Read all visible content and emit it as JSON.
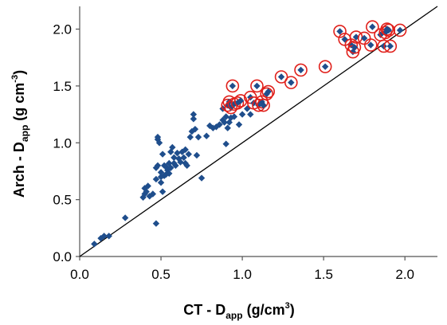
{
  "chart_data": {
    "type": "scatter",
    "xlabel": {
      "main": "CT - D",
      "sub": "app",
      "tail": " (g/cm",
      "sup": "3",
      "end": ")"
    },
    "ylabel": {
      "main": "Arch - D",
      "sub": "app",
      "tail": " (g cm",
      "sup": "-3",
      "end": ")"
    },
    "xlim": [
      0.0,
      2.2
    ],
    "ylim": [
      0.0,
      2.2
    ],
    "x_ticks": [
      "0.0",
      "0.5",
      "1.0",
      "1.5",
      "2.0"
    ],
    "y_ticks": [
      "0.0",
      "0.5",
      "1.0",
      "1.5",
      "2.0"
    ],
    "grid": false,
    "reference_line": {
      "name": "1:1 line",
      "from": [
        0.0,
        0.0
      ],
      "to": [
        2.2,
        2.2
      ],
      "color": "#000000"
    },
    "marker_color": "#1f4e8c",
    "highlight_color": "#e0201b",
    "series": [
      {
        "points": [
          [
            0.09,
            0.11
          ],
          [
            0.13,
            0.16
          ],
          [
            0.15,
            0.18
          ],
          [
            0.18,
            0.18
          ],
          [
            0.28,
            0.34
          ],
          [
            0.39,
            0.52
          ],
          [
            0.4,
            0.6
          ],
          [
            0.4,
            0.55
          ],
          [
            0.41,
            0.57
          ],
          [
            0.42,
            0.62
          ],
          [
            0.43,
            0.53
          ],
          [
            0.45,
            0.55
          ],
          [
            0.47,
            0.29
          ],
          [
            0.47,
            0.68
          ],
          [
            0.47,
            0.78
          ],
          [
            0.48,
            0.8
          ],
          [
            0.48,
            1.03
          ],
          [
            0.48,
            1.05
          ],
          [
            0.49,
            1.0
          ],
          [
            0.5,
            0.74
          ],
          [
            0.5,
            0.7
          ],
          [
            0.5,
            0.65
          ],
          [
            0.51,
            0.9
          ],
          [
            0.51,
            0.57
          ],
          [
            0.52,
            0.71
          ],
          [
            0.52,
            0.8
          ],
          [
            0.53,
            0.72
          ],
          [
            0.53,
            0.79
          ],
          [
            0.54,
            0.76
          ],
          [
            0.55,
            0.82
          ],
          [
            0.55,
            0.73
          ],
          [
            0.56,
            0.92
          ],
          [
            0.56,
            0.78
          ],
          [
            0.57,
            0.96
          ],
          [
            0.58,
            0.82
          ],
          [
            0.58,
            0.87
          ],
          [
            0.59,
            0.8
          ],
          [
            0.6,
            0.91
          ],
          [
            0.61,
            0.86
          ],
          [
            0.62,
            0.83
          ],
          [
            0.63,
            0.92
          ],
          [
            0.64,
            0.87
          ],
          [
            0.65,
            0.82
          ],
          [
            0.65,
            0.94
          ],
          [
            0.66,
            0.8
          ],
          [
            0.67,
            0.9
          ],
          [
            0.68,
            1.05
          ],
          [
            0.69,
            1.1
          ],
          [
            0.7,
            1.25
          ],
          [
            0.7,
            1.21
          ],
          [
            0.71,
            1.12
          ],
          [
            0.72,
            0.89
          ],
          [
            0.73,
            1.05
          ],
          [
            0.75,
            0.69
          ],
          [
            0.78,
            1.06
          ],
          [
            0.8,
            1.15
          ],
          [
            0.82,
            1.13
          ],
          [
            0.84,
            1.14
          ],
          [
            0.86,
            1.16
          ],
          [
            0.88,
            1.3
          ],
          [
            0.88,
            1.2
          ],
          [
            0.89,
            1.18
          ],
          [
            0.9,
            1.23
          ],
          [
            0.9,
            0.99
          ],
          [
            0.91,
            1.13
          ],
          [
            0.92,
            1.18
          ],
          [
            0.93,
            1.22
          ],
          [
            0.95,
            1.23
          ],
          [
            0.98,
            1.16
          ],
          [
            1.0,
            1.25
          ],
          [
            1.03,
            1.3
          ],
          [
            1.05,
            1.25
          ]
        ]
      },
      {
        "name": "circled",
        "points": [
          [
            0.91,
            1.33
          ],
          [
            0.92,
            1.36
          ],
          [
            0.93,
            1.31
          ],
          [
            0.94,
            1.5
          ],
          [
            0.95,
            1.34
          ],
          [
            0.97,
            1.35
          ],
          [
            0.99,
            1.37
          ],
          [
            1.05,
            1.4
          ],
          [
            1.07,
            1.35
          ],
          [
            1.09,
            1.5
          ],
          [
            1.1,
            1.33
          ],
          [
            1.12,
            1.36
          ],
          [
            1.13,
            1.33
          ],
          [
            1.15,
            1.43
          ],
          [
            1.16,
            1.45
          ],
          [
            1.24,
            1.58
          ],
          [
            1.3,
            1.53
          ],
          [
            1.36,
            1.64
          ],
          [
            1.51,
            1.67
          ],
          [
            1.6,
            1.98
          ],
          [
            1.63,
            1.91
          ],
          [
            1.67,
            1.86
          ],
          [
            1.68,
            1.8
          ],
          [
            1.69,
            1.84
          ],
          [
            1.7,
            1.93
          ],
          [
            1.75,
            1.92
          ],
          [
            1.79,
            1.86
          ],
          [
            1.8,
            2.02
          ],
          [
            1.85,
            1.95
          ],
          [
            1.87,
            1.85
          ],
          [
            1.88,
            1.97
          ],
          [
            1.89,
            2.0
          ],
          [
            1.9,
            1.99
          ],
          [
            1.91,
            1.85
          ],
          [
            1.97,
            1.99
          ]
        ]
      }
    ]
  }
}
